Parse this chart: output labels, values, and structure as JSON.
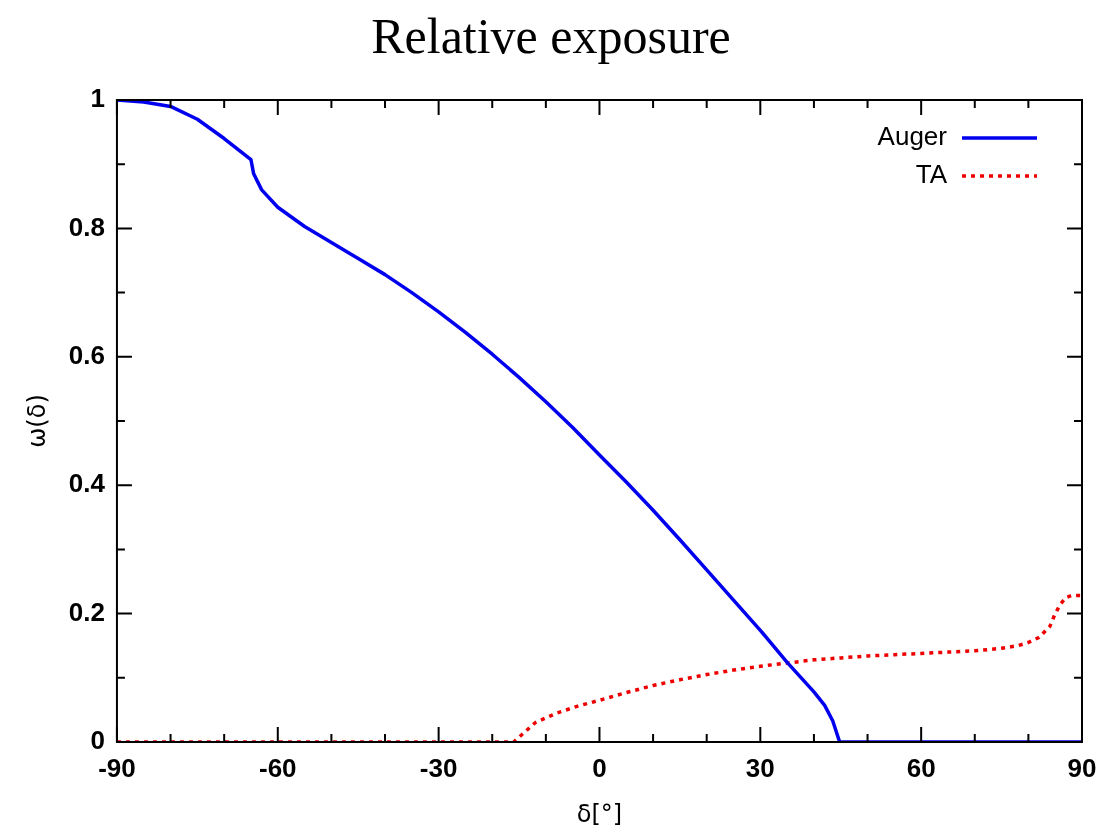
{
  "chart_data": {
    "type": "line",
    "title": "Relative exposure",
    "xlabel": "δ[°]",
    "ylabel": "ω(δ)",
    "xlim": [
      -90,
      90
    ],
    "ylim": [
      0,
      1
    ],
    "xticks": [
      -90,
      {
        "value": -80,
        "label": null
      },
      {
        "value": -70,
        "label": null
      },
      -60,
      {
        "value": -50,
        "label": null
      },
      {
        "value": -40,
        "label": null
      },
      -30,
      {
        "value": -20,
        "label": null
      },
      {
        "value": -10,
        "label": null
      },
      0,
      {
        "value": 10,
        "label": null
      },
      {
        "value": 20,
        "label": null
      },
      30,
      {
        "value": 40,
        "label": null
      },
      {
        "value": 50,
        "label": null
      },
      60,
      {
        "value": 70,
        "label": null
      },
      {
        "value": 80,
        "label": null
      },
      90
    ],
    "yticks": [
      0,
      {
        "value": 0.1,
        "label": null
      },
      0.2,
      {
        "value": 0.3,
        "label": null
      },
      0.4,
      {
        "value": 0.5,
        "label": null
      },
      0.6,
      {
        "value": 0.7,
        "label": null
      },
      0.8,
      {
        "value": 0.9,
        "label": null
      },
      1
    ],
    "legend": "top right",
    "marker": "none",
    "grid": false,
    "series": [
      {
        "name": "Auger",
        "color": "#0000ee",
        "line_style": "solid",
        "x": [
          -90,
          -85,
          -80,
          -75,
          -70,
          -65,
          -64.5,
          -63,
          -60,
          -55,
          -50,
          -45,
          -40,
          -35,
          -30,
          -25,
          -20,
          -15,
          -10,
          -5,
          0,
          5,
          10,
          15,
          20,
          25,
          30,
          35,
          40,
          42,
          43.5,
          44.8,
          50,
          60,
          70,
          80,
          90
        ],
        "values": [
          1,
          0.997,
          0.99,
          0.97,
          0.94,
          0.907,
          0.885,
          0.86,
          0.833,
          0.803,
          0.778,
          0.753,
          0.728,
          0.7,
          0.67,
          0.638,
          0.604,
          0.568,
          0.53,
          0.49,
          0.447,
          0.405,
          0.361,
          0.315,
          0.268,
          0.221,
          0.174,
          0.124,
          0.078,
          0.057,
          0.033,
          0,
          0,
          0,
          0,
          0,
          0
        ]
      },
      {
        "name": "TA",
        "color": "#ee0000",
        "line_style": "dotted",
        "x": [
          -90,
          -60,
          -30,
          -16,
          -12,
          -8,
          -4,
          0,
          5,
          10,
          15,
          20,
          25,
          30,
          35,
          40,
          45,
          50,
          55,
          60,
          65,
          70,
          75,
          78,
          80,
          82,
          84,
          85,
          86,
          87,
          88,
          90
        ],
        "values": [
          0,
          0,
          0,
          0,
          0.03,
          0.045,
          0.056,
          0.065,
          0.077,
          0.088,
          0.097,
          0.105,
          0.112,
          0.118,
          0.123,
          0.128,
          0.131,
          0.134,
          0.136,
          0.138,
          0.14,
          0.142,
          0.146,
          0.15,
          0.155,
          0.163,
          0.18,
          0.2,
          0.215,
          0.225,
          0.228,
          0.228
        ]
      }
    ]
  }
}
